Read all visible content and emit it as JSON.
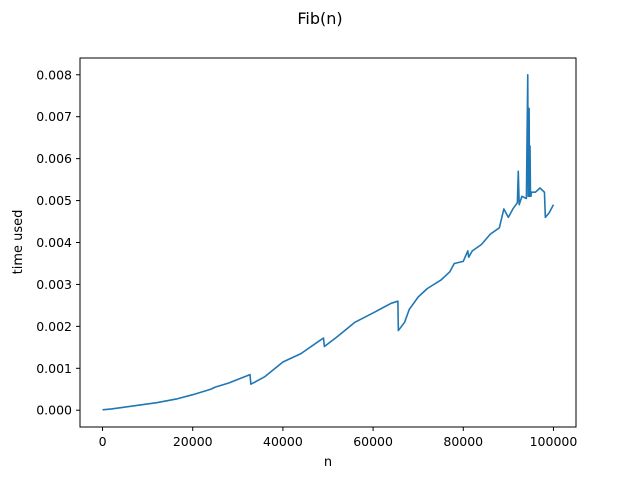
{
  "chart_data": {
    "type": "line",
    "title": "Fib(n)",
    "xlabel": "n",
    "ylabel": "time used",
    "xlim": [
      -5000,
      105000
    ],
    "ylim": [
      -0.0004,
      0.0084
    ],
    "x_ticks": [
      0,
      20000,
      40000,
      60000,
      80000,
      100000
    ],
    "x_tick_labels": [
      "0",
      "20000",
      "40000",
      "60000",
      "80000",
      "100000"
    ],
    "y_ticks": [
      0.0,
      0.001,
      0.002,
      0.003,
      0.004,
      0.005,
      0.006,
      0.007,
      0.008
    ],
    "y_tick_labels": [
      "0.000",
      "0.001",
      "0.002",
      "0.003",
      "0.004",
      "0.005",
      "0.006",
      "0.007",
      "0.008"
    ],
    "grid": false,
    "series": [
      {
        "color": "#1f77b4",
        "x": [
          0,
          2000,
          4000,
          8000,
          12000,
          16000,
          16500,
          20000,
          24000,
          25000,
          28000,
          32700,
          32900,
          36000,
          40000,
          44000,
          48000,
          49000,
          49200,
          52000,
          56000,
          60000,
          64000,
          65500,
          65600,
          67000,
          68000,
          70000,
          72000,
          75000,
          77000,
          78000,
          80000,
          81000,
          81200,
          82000,
          84000,
          86000,
          88000,
          89000,
          90000,
          91000,
          92000,
          92200,
          92400,
          93000,
          94000,
          94300,
          94400,
          94600,
          94700,
          94800,
          94900,
          95000,
          95100,
          96000,
          97000,
          98000,
          98200,
          99000,
          100000
        ],
        "y": [
          1e-05,
          3e-05,
          6e-05,
          0.00012,
          0.00018,
          0.00026,
          0.00027,
          0.00037,
          0.0005,
          0.00055,
          0.00065,
          0.00085,
          0.00062,
          0.0008,
          0.00115,
          0.00135,
          0.00165,
          0.00172,
          0.00152,
          0.00175,
          0.0021,
          0.00232,
          0.00255,
          0.0026,
          0.0019,
          0.0021,
          0.0024,
          0.0027,
          0.0029,
          0.0031,
          0.0033,
          0.0035,
          0.00355,
          0.0038,
          0.00365,
          0.0038,
          0.00395,
          0.0042,
          0.00435,
          0.0048,
          0.0046,
          0.0048,
          0.00495,
          0.0057,
          0.0049,
          0.0051,
          0.00505,
          0.008,
          0.0051,
          0.0072,
          0.0051,
          0.0063,
          0.0052,
          0.0051,
          0.0052,
          0.0052,
          0.0053,
          0.0052,
          0.0046,
          0.0047,
          0.0049
        ]
      }
    ]
  }
}
